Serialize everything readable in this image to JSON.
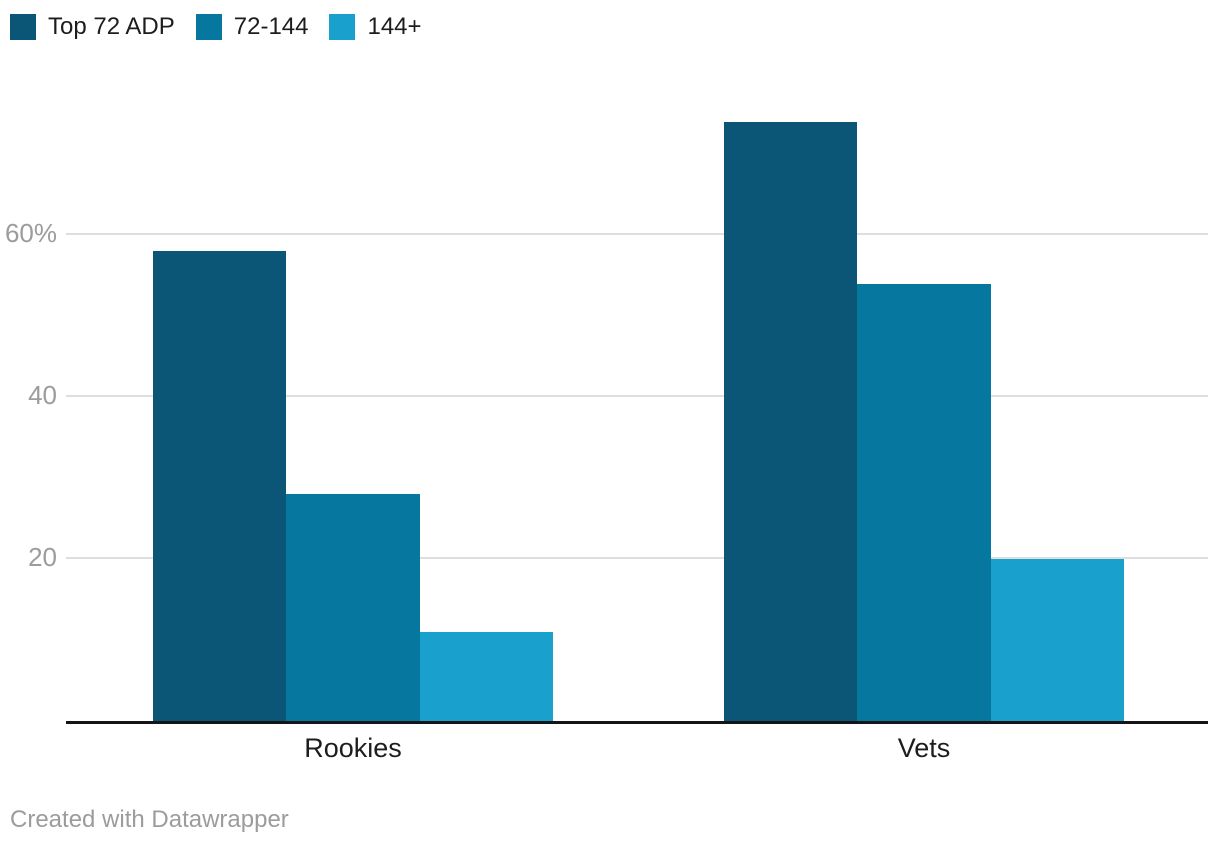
{
  "legend": {
    "items": [
      {
        "label": "Top 72 ADP",
        "color": "#0b5677"
      },
      {
        "label": "72-144",
        "color": "#06789f"
      },
      {
        "label": "144+",
        "color": "#1aa0cc"
      }
    ]
  },
  "chart_data": {
    "type": "bar",
    "categories": [
      "Rookies",
      "Vets"
    ],
    "series": [
      {
        "name": "Top 72 ADP",
        "color": "#0b5677",
        "values": [
          58,
          74
        ]
      },
      {
        "name": "72-144",
        "color": "#06789f",
        "values": [
          28,
          54
        ]
      },
      {
        "name": "144+",
        "color": "#1aa0cc",
        "values": [
          11,
          20
        ]
      }
    ],
    "unit": "percent",
    "ylim": [
      0,
      80
    ],
    "yticks": [
      {
        "label": "60%",
        "value": 60
      },
      {
        "label": "40",
        "value": 40
      },
      {
        "label": "20",
        "value": 20
      }
    ],
    "grid": "horizontal",
    "legend_position": "top-left",
    "title": "",
    "xlabel": "",
    "ylabel": ""
  },
  "footer": {
    "credit": "Created with Datawrapper"
  }
}
